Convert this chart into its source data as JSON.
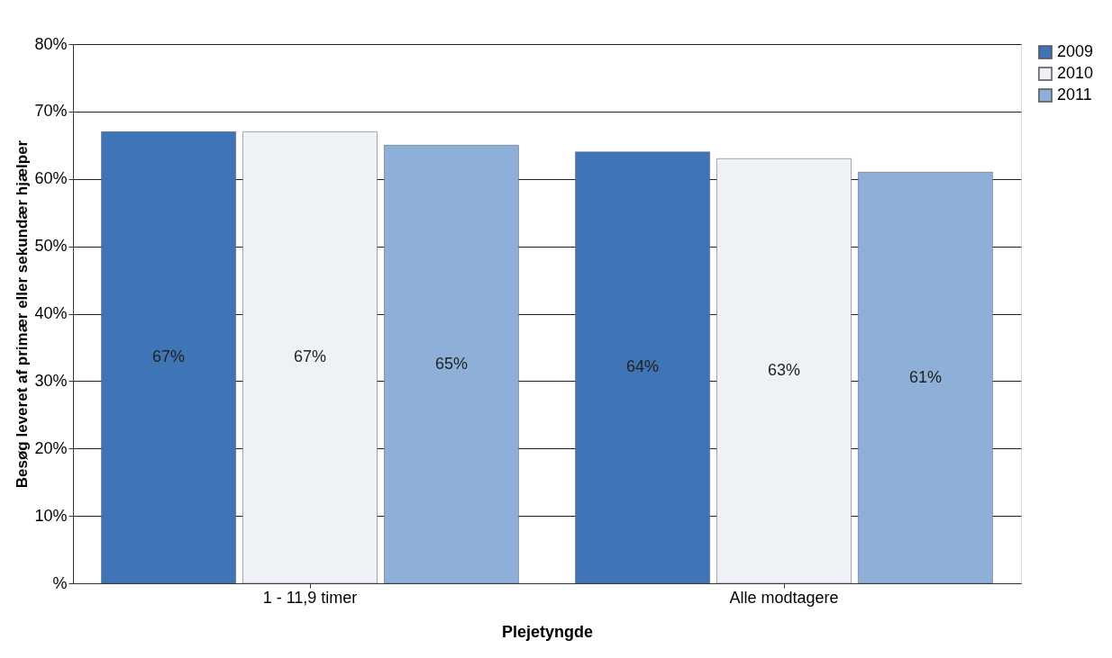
{
  "chart_data": {
    "type": "bar",
    "xlabel": "Plejetyngde",
    "ylabel": "Besøg leveret af primær eller sekundær hjælper",
    "categories": [
      "1 - 11,9 timer",
      "Alle modtagere"
    ],
    "series": [
      {
        "name": "2009",
        "color": "#3f74b6",
        "values": [
          67,
          64
        ],
        "value_labels": [
          "67%",
          "64%"
        ]
      },
      {
        "name": "2010",
        "color": "#eef1f6",
        "values": [
          67,
          63
        ],
        "value_labels": [
          "67%",
          "63%"
        ]
      },
      {
        "name": "2011",
        "color": "#8eb0d8",
        "values": [
          65,
          61
        ],
        "value_labels": [
          "65%",
          "61%"
        ]
      }
    ],
    "ylim": [
      0,
      80
    ],
    "yticks": [
      {
        "value": 0,
        "label": "%"
      },
      {
        "value": 10,
        "label": "10%"
      },
      {
        "value": 20,
        "label": "20%"
      },
      {
        "value": 30,
        "label": "30%"
      },
      {
        "value": 40,
        "label": "40%"
      },
      {
        "value": 50,
        "label": "50%"
      },
      {
        "value": 60,
        "label": "60%"
      },
      {
        "value": 70,
        "label": "70%"
      },
      {
        "value": 80,
        "label": "80%"
      }
    ],
    "grid": "y",
    "legend": "right"
  }
}
